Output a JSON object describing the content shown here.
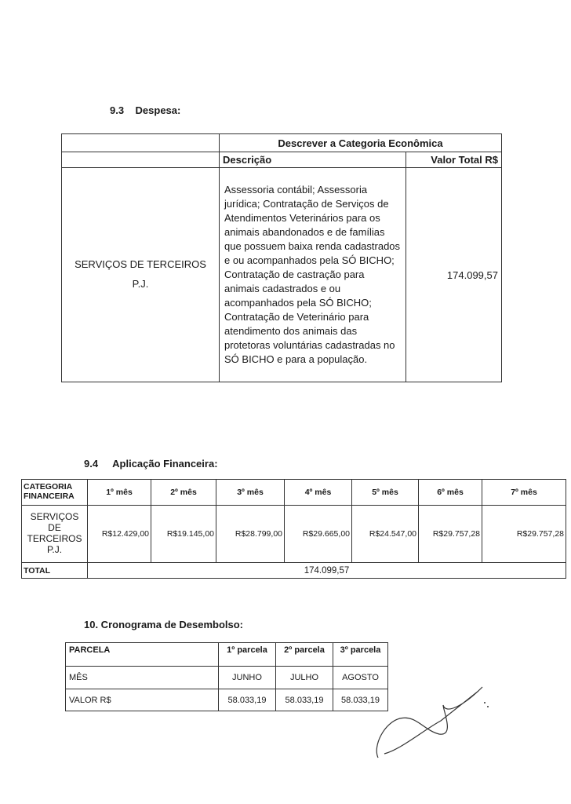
{
  "section_9_3": {
    "heading_num": "9.3",
    "heading": "Despesa:",
    "header_top": "Descrever a Categoria Econômica",
    "col_desc": "Descrição",
    "col_value": "Valor Total  R$",
    "category_line1": "SERVIÇOS DE TERCEIROS",
    "category_line2": "P.J.",
    "description": "Assessoria contábil; Assessoria jurídica; Contratação de Serviços de Atendimentos Veterinários para os animais abandonados e de famílias que possuem baixa renda cadastrados e ou acompanhados pela SÓ BICHO; Contratação de castração para animais cadastrados e ou acompanhados pela SÓ BICHO; Contratação de Veterinário para atendimento dos animais das protetoras voluntárias cadastradas no SÓ BICHO e para a população.",
    "value": "174.099,57"
  },
  "section_9_4": {
    "heading_num": "9.4",
    "heading": "Aplicação Financeira:",
    "col_category": "CATEGORIA FINANCEIRA",
    "months": [
      "1º mês",
      "2º mês",
      "3º mês",
      "4º mês",
      "5º mês",
      "6º mês",
      "7º mês"
    ],
    "row_category": "SERVIÇOS DE TERCEIROS P.J.",
    "values": [
      "R$12.429,00",
      "R$19.145,00",
      "R$28.799,00",
      "R$29.665,00",
      "R$24.547,00",
      "R$29.757,28",
      "R$29.757,28"
    ],
    "total_label": "TOTAL",
    "total_value": "174.099,57"
  },
  "section_10": {
    "heading": "10. Cronograma de Desembolso:",
    "rows": [
      {
        "label": "PARCELA",
        "cells": [
          "1º parcela",
          "2º parcela",
          "3º parcela"
        ]
      },
      {
        "label": "MÊS",
        "cells": [
          "JUNHO",
          "JULHO",
          "AGOSTO"
        ]
      },
      {
        "label": "VALOR R$",
        "cells": [
          "58.033,19",
          "58.033,19",
          "58.033,19"
        ]
      }
    ]
  }
}
